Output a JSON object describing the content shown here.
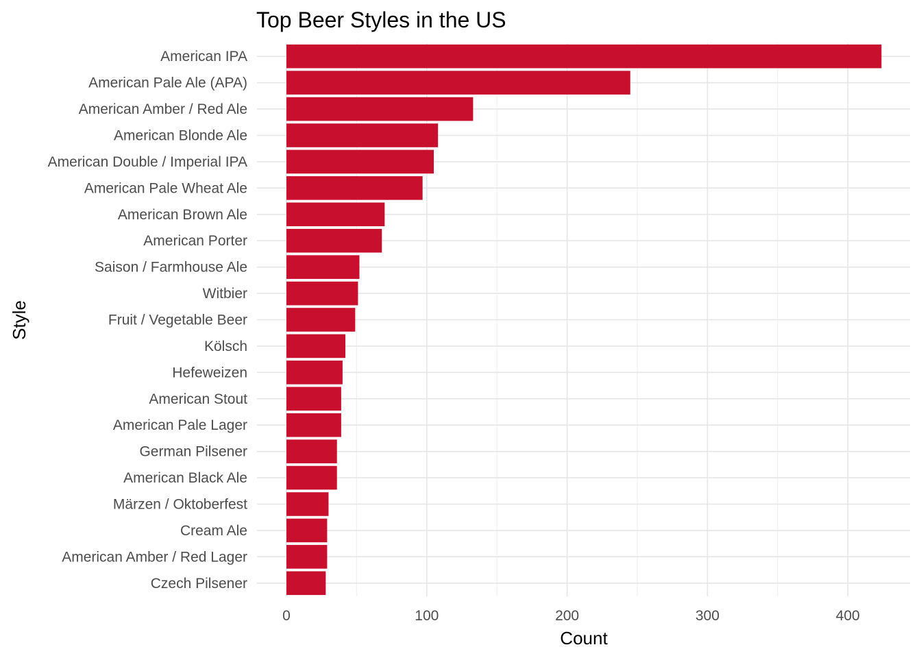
{
  "chart_data": {
    "type": "bar",
    "orientation": "horizontal",
    "title": "Top Beer Styles in the US",
    "xlabel": "Count",
    "ylabel": "Style",
    "xlim": [
      0,
      445
    ],
    "xticks": [
      0,
      100,
      200,
      300,
      400
    ],
    "grid": true,
    "legend": "none",
    "bar_color": "#C8102E",
    "categories": [
      "American IPA",
      "American Pale Ale (APA)",
      "American Amber / Red Ale",
      "American Blonde Ale",
      "American Double / Imperial IPA",
      "American Pale Wheat Ale",
      "American Brown Ale",
      "American Porter",
      "Saison / Farmhouse Ale",
      "Witbier",
      "Fruit / Vegetable Beer",
      "Kölsch",
      "Hefeweizen",
      "American Stout",
      "American Pale Lager",
      "German Pilsener",
      "American Black Ale",
      "Märzen / Oktoberfest",
      "Cream Ale",
      "American Amber / Red Lager",
      "Czech Pilsener"
    ],
    "values": [
      424,
      245,
      133,
      108,
      105,
      97,
      70,
      68,
      52,
      51,
      49,
      42,
      40,
      39,
      39,
      36,
      36,
      30,
      29,
      29,
      28
    ]
  }
}
